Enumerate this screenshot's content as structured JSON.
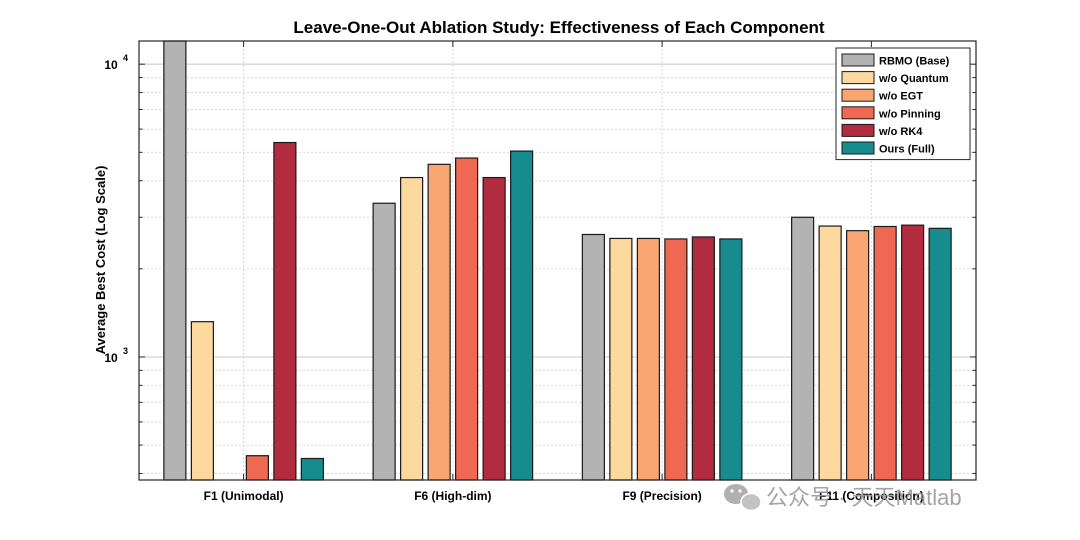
{
  "chart_data": {
    "type": "bar",
    "title": "Leave-One-Out Ablation Study: Effectiveness of Each Component",
    "xlabel": "",
    "ylabel": "Average Best Cost (Log Scale)",
    "yscale": "log",
    "ylim": [
      380,
      12000
    ],
    "y_ticks": [
      {
        "value": 1000,
        "base": "10",
        "exp": "3"
      },
      {
        "value": 10000,
        "base": "10",
        "exp": "4"
      }
    ],
    "grid": true,
    "legend_position": "top-right",
    "categories": [
      "F1 (Unimodal)",
      "F6 (High-dim)",
      "F9 (Precision)",
      "F11 (Composition)"
    ],
    "series": [
      {
        "name": "RBMO (Base)",
        "color": "#b3b3b3",
        "values": [
          12000,
          3350,
          2620,
          3000
        ]
      },
      {
        "name": "w/o Quantum",
        "color": "#fdd9a0",
        "values": [
          1320,
          4100,
          2540,
          2800
        ]
      },
      {
        "name": "w/o EGT",
        "color": "#f9a673",
        "values": [
          null,
          4550,
          2540,
          2700
        ]
      },
      {
        "name": "w/o Pinning",
        "color": "#ef6952",
        "values": [
          460,
          4780,
          2530,
          2790
        ]
      },
      {
        "name": "w/o RK4",
        "color": "#b22c3f",
        "values": [
          5400,
          4100,
          2570,
          2820
        ]
      },
      {
        "name": "Ours (Full)",
        "color": "#168c8e",
        "values": [
          450,
          5050,
          2530,
          2750
        ]
      }
    ]
  },
  "watermark": {
    "text": "公众号 · 天天Matlab",
    "icon": "wechat-icon"
  }
}
